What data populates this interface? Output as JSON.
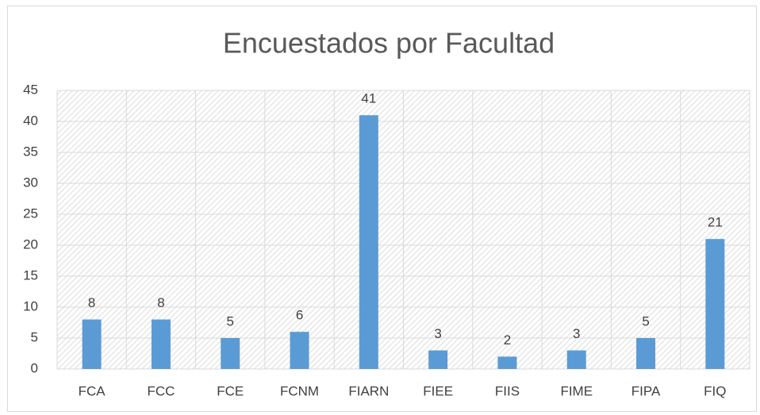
{
  "chart_data": {
    "type": "bar",
    "title": "Encuestados por Facultad",
    "categories": [
      "FCA",
      "FCC",
      "FCE",
      "FCNM",
      "FIARN",
      "FIEE",
      "FIIS",
      "FIME",
      "FIPA",
      "FIQ"
    ],
    "values": [
      8,
      8,
      5,
      6,
      41,
      3,
      2,
      3,
      5,
      21
    ],
    "color": "#5b9bd5",
    "ylim": [
      0,
      45
    ],
    "yticks": [
      0,
      5,
      10,
      15,
      20,
      25,
      30,
      35,
      40,
      45
    ],
    "grid": true
  }
}
